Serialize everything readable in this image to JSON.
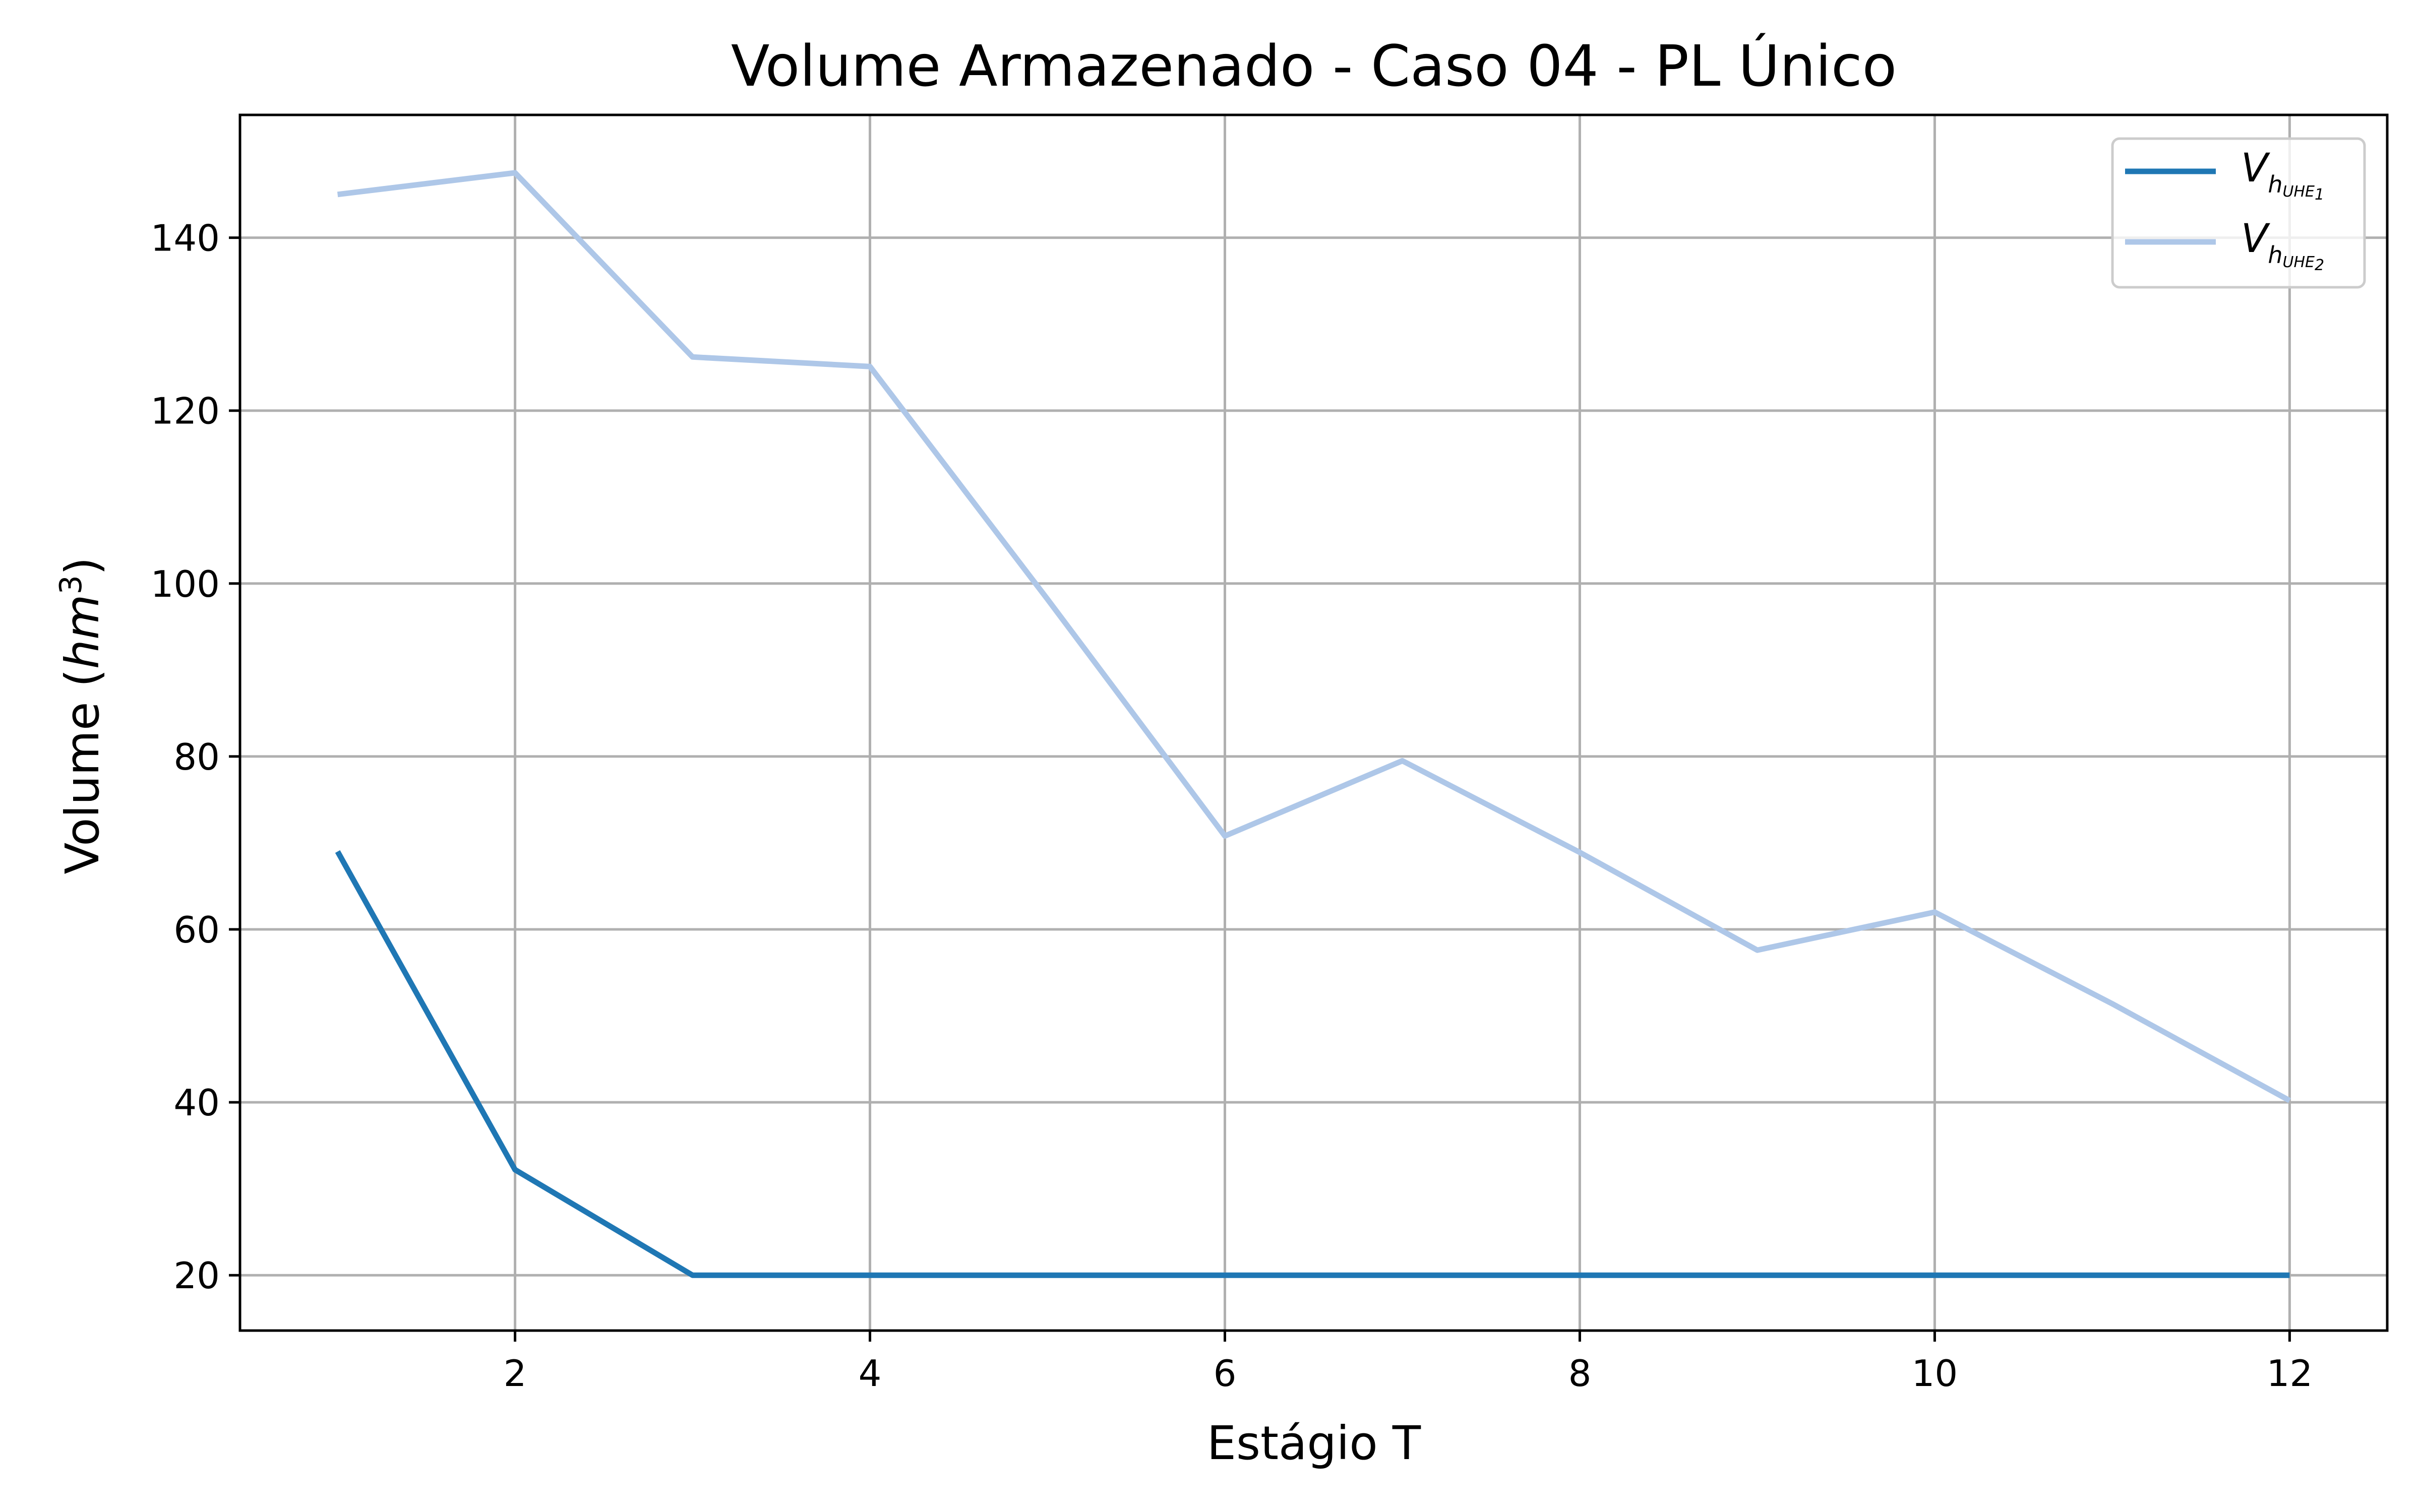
{
  "chart_data": {
    "type": "line",
    "title": "Volume Armazenado - Caso 04 - PL Único",
    "xlabel": "Estágio T",
    "ylabel": "Volume (hm³)",
    "ylabel_prefix": "Volume (",
    "ylabel_var": "hm",
    "ylabel_exp": "3",
    "ylabel_suffix": ")",
    "xlim": [
      0.45,
      12.55
    ],
    "ylim": [
      13.6,
      154.2
    ],
    "xticks": [
      2,
      4,
      6,
      8,
      10,
      12
    ],
    "yticks": [
      20,
      40,
      60,
      80,
      100,
      120,
      140
    ],
    "grid": true,
    "legend_position": "top-right",
    "x": [
      1,
      2,
      3,
      4,
      5,
      6,
      7,
      8,
      9,
      10,
      11,
      12
    ],
    "series": [
      {
        "name": "V_{h_{UHE_1}}",
        "legend_main": "V",
        "legend_sub": "h",
        "legend_subsub": "UHE",
        "legend_index": "1",
        "color": "#1f77b4",
        "values": [
          69,
          32.2,
          20,
          20,
          20,
          20,
          20,
          20,
          20,
          20,
          20,
          20
        ]
      },
      {
        "name": "V_{h_{UHE_2}}",
        "legend_main": "V",
        "legend_sub": "h",
        "legend_subsub": "UHE",
        "legend_index": "2",
        "color": "#aec7e8",
        "values": [
          145,
          147.5,
          126.2,
          125.1,
          98.2,
          70.8,
          79.5,
          68.9,
          57.6,
          62.0,
          51.4,
          40.2
        ]
      }
    ]
  }
}
